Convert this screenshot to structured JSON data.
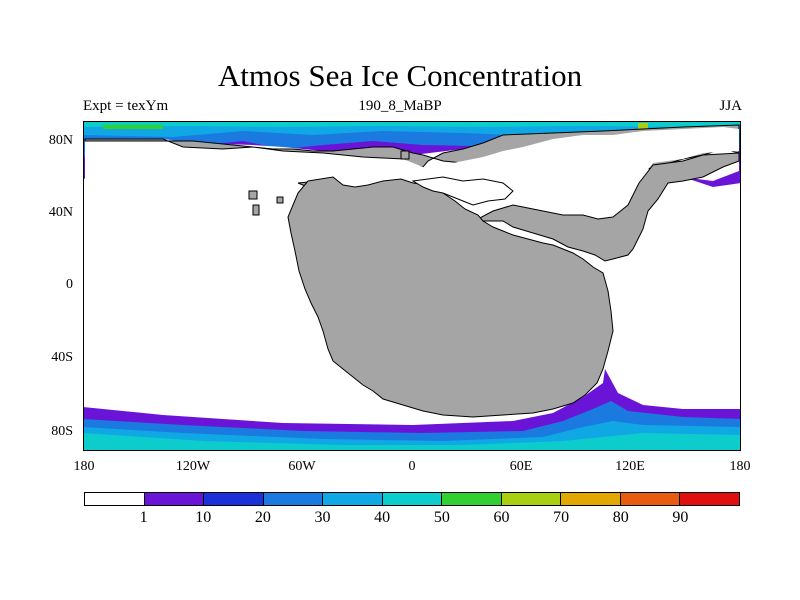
{
  "title": "Atmos Sea Ice Concentration",
  "subtitle_left": "Expt = texYm",
  "subtitle_center": "190_8_MaBP",
  "subtitle_right": "JJA",
  "lat_labels": [
    "80N",
    "40N",
    "0",
    "40S",
    "80S"
  ],
  "lon_labels": [
    "180",
    "120W",
    "60W",
    "0",
    "60E",
    "120E",
    "180"
  ],
  "colors": {
    "land": "#a5a5a5",
    "ocean": "#ffffff",
    "levels": [
      "#ffffff",
      "#6a14d8",
      "#1a32d8",
      "#1a7ae0",
      "#10a8e4",
      "#0ccccc",
      "#30d030",
      "#a8d010",
      "#e0a800",
      "#e85c10",
      "#e01010"
    ]
  },
  "legend": {
    "labels": [
      "1",
      "10",
      "20",
      "30",
      "40",
      "50",
      "60",
      "70",
      "80",
      "90"
    ]
  }
}
